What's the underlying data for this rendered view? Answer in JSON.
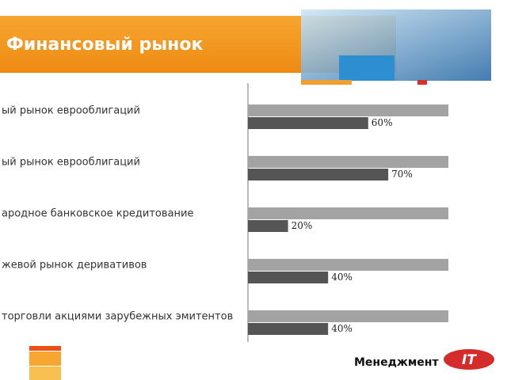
{
  "chart_data": {
    "type": "bar",
    "orientation": "horizontal",
    "title": "Финансовый рынок",
    "categories": [
      "ый рынок еврооблигаций",
      "ый рынок еврооблигаций",
      "ародное банковское кредитование",
      "жевой рынок деривативов",
      "торговли акциями зарубежных эмитентов"
    ],
    "series": [
      {
        "color": "#a3a3a3",
        "values": [
          100,
          100,
          100,
          100,
          100
        ]
      },
      {
        "color": "#555555",
        "values": [
          60,
          70,
          20,
          40,
          40
        ],
        "value_labels": [
          "60%",
          "70%",
          "20%",
          "40%",
          "40%"
        ]
      }
    ],
    "xlim": [
      0,
      100
    ]
  },
  "footer": "Менеджмент",
  "logo": "IT"
}
